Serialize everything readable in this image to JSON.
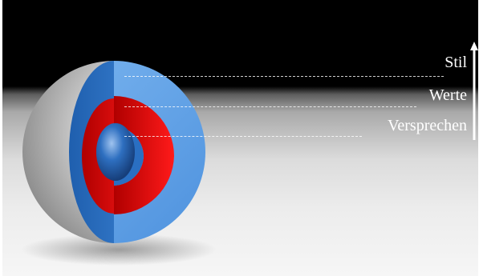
{
  "diagram": {
    "layers": [
      {
        "label": "Stil",
        "color": "#5aa0e6"
      },
      {
        "label": "Werte",
        "color": "#e20000"
      },
      {
        "label": "Versprechen",
        "color": "#2a6fc2"
      }
    ],
    "shell_color": "#c4c4c4",
    "arrow_color": "#ffffff"
  }
}
